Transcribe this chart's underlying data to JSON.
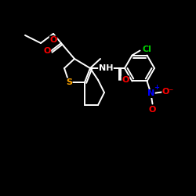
{
  "background": "#000000",
  "bond_color": "#ffffff",
  "atom_colors": {
    "O": "#ff0000",
    "N": "#0000ff",
    "S": "#ffa500",
    "Cl": "#00cc00",
    "C": "#ffffff",
    "H": "#ffffff"
  },
  "bonds": {
    "lw": 1.4
  }
}
